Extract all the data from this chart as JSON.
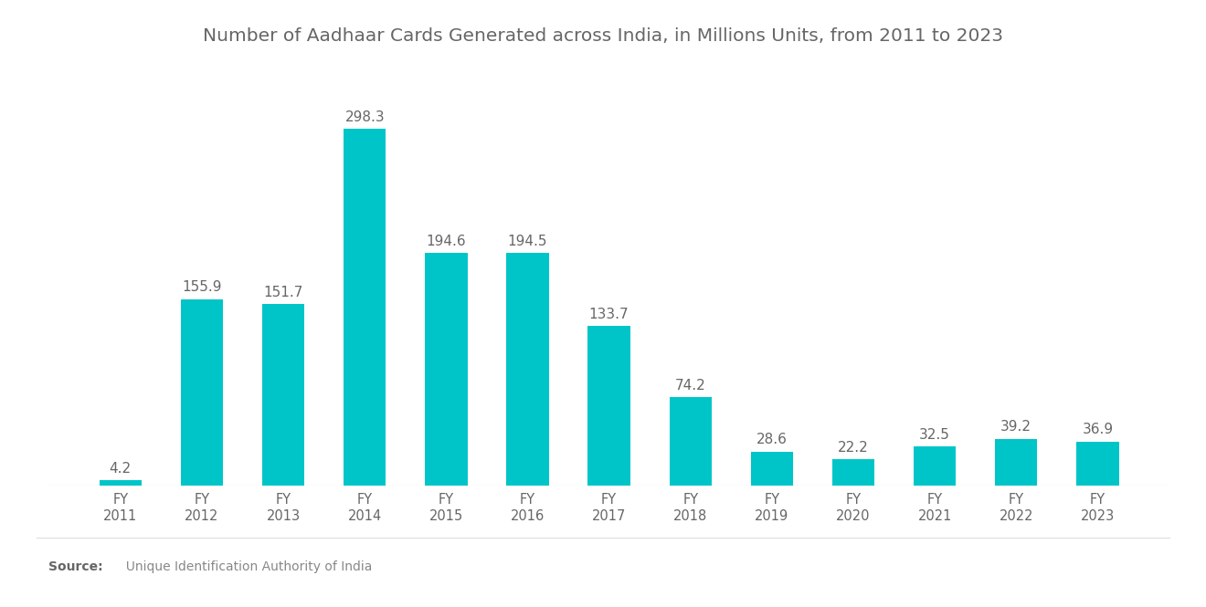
{
  "title": "Number of Aadhaar Cards Generated across India, in Millions Units, from 2011 to 2023",
  "categories": [
    "FY\n2011",
    "FY\n2012",
    "FY\n2013",
    "FY\n2014",
    "FY\n2015",
    "FY\n2016",
    "FY\n2017",
    "FY\n2018",
    "FY\n2019",
    "FY\n2020",
    "FY\n2021",
    "FY\n2022",
    "FY\n2023"
  ],
  "values": [
    4.2,
    155.9,
    151.7,
    298.3,
    194.6,
    194.5,
    133.7,
    74.2,
    28.6,
    22.2,
    32.5,
    39.2,
    36.9
  ],
  "bar_color": "#00C5C8",
  "background_color": "#ffffff",
  "title_color": "#666666",
  "label_color": "#666666",
  "tick_color": "#666666",
  "source_bold": "Source:",
  "source_text": "  Unique Identification Authority of India",
  "title_fontsize": 14.5,
  "label_fontsize": 11,
  "tick_fontsize": 10.5,
  "source_fontsize": 10,
  "ylim": [
    0,
    340
  ],
  "bar_width": 0.52
}
